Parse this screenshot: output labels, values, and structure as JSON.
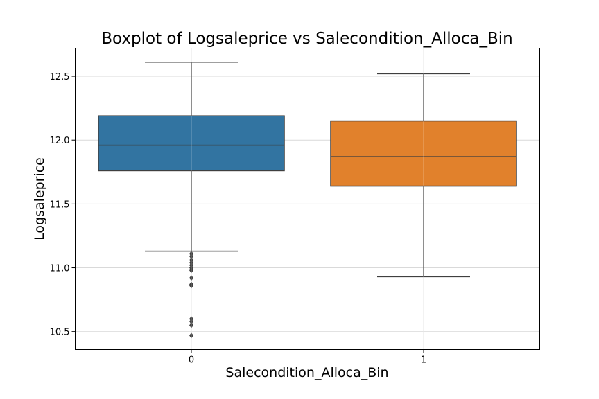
{
  "chart_data": {
    "type": "boxplot",
    "title": "Boxplot of Logsaleprice vs Salecondition_Alloca_Bin",
    "xlabel": "Salecondition_Alloca_Bin",
    "ylabel": "Logsaleprice",
    "ylim": [
      10.36,
      12.72
    ],
    "yticks": [
      10.5,
      11.0,
      11.5,
      12.0,
      12.5
    ],
    "ytick_labels": [
      "10.5",
      "11.0",
      "11.5",
      "12.0",
      "12.5"
    ],
    "grid": true,
    "categories": [
      "0",
      "1"
    ],
    "boxes": [
      {
        "category": "0",
        "color": "#3274a1",
        "q1": 11.76,
        "median": 11.96,
        "q3": 12.19,
        "whisker_low": 11.13,
        "whisker_high": 12.61,
        "outliers": [
          11.11,
          11.09,
          11.06,
          11.04,
          11.02,
          11.0,
          10.98,
          10.92,
          10.87,
          10.86,
          10.6,
          10.58,
          10.55,
          10.47
        ]
      },
      {
        "category": "1",
        "color": "#e1812c",
        "q1": 11.64,
        "median": 11.87,
        "q3": 12.15,
        "whisker_low": 10.93,
        "whisker_high": 12.52,
        "outliers": []
      }
    ]
  }
}
